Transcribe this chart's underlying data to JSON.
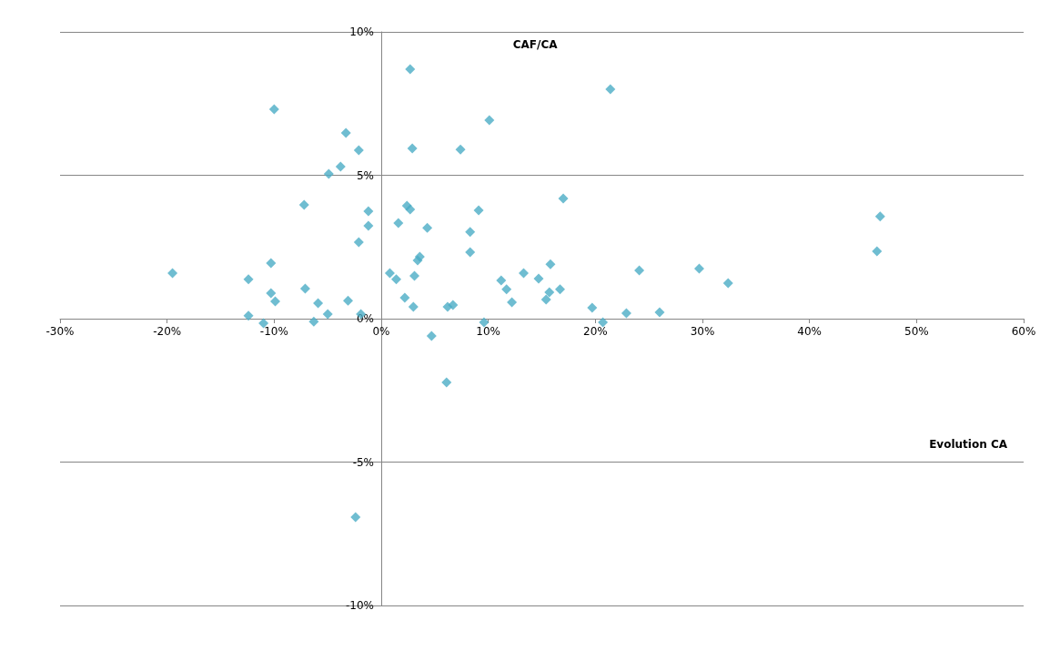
{
  "chart_data": {
    "type": "scatter",
    "xlabel": "Evolution CA",
    "ylabel": "CAF/CA",
    "marker": "diamond",
    "grid": "y",
    "xlim": [
      -30,
      60
    ],
    "ylim": [
      -10,
      10
    ],
    "xticks": [
      {
        "value": -30,
        "label": "-30%"
      },
      {
        "value": -20,
        "label": "-20%"
      },
      {
        "value": -10,
        "label": "-10%"
      },
      {
        "value": 0,
        "label": "0%"
      },
      {
        "value": 10,
        "label": "10%"
      },
      {
        "value": 20,
        "label": "20%"
      },
      {
        "value": 30,
        "label": "30%"
      },
      {
        "value": 40,
        "label": "40%"
      },
      {
        "value": 50,
        "label": "50%"
      },
      {
        "value": 60,
        "label": "60%"
      }
    ],
    "yticks": [
      {
        "value": -10,
        "label": "-10%"
      },
      {
        "value": -5,
        "label": "-5%"
      },
      {
        "value": 0,
        "label": "0%"
      },
      {
        "value": 5,
        "label": "5%"
      },
      {
        "value": 10,
        "label": "10%"
      }
    ],
    "series": [
      {
        "color": "#4bacc6",
        "x": [
          -19.5,
          -12.4,
          -12.4,
          -11.0,
          -10.3,
          -10.3,
          -9.9,
          -10.0,
          -7.2,
          -7.1,
          -6.3,
          -5.9,
          -5.0,
          -4.9,
          -3.8,
          -3.3,
          -3.1,
          -2.1,
          -2.1,
          -1.9,
          -1.2,
          -1.2,
          -2.4,
          0.8,
          1.4,
          1.6,
          2.2,
          2.4,
          2.7,
          2.7,
          2.9,
          3.1,
          3.0,
          3.4,
          3.6,
          4.3,
          4.7,
          6.1,
          6.2,
          6.7,
          7.4,
          8.3,
          8.3,
          9.1,
          9.6,
          10.1,
          11.2,
          11.7,
          12.2,
          13.3,
          14.7,
          15.4,
          15.7,
          15.8,
          16.7,
          17.0,
          19.7,
          20.7,
          21.4,
          22.9,
          24.1,
          26.0,
          29.7,
          32.4,
          46.3,
          46.6
        ],
        "values": [
          1.59,
          1.37,
          0.1,
          -0.16,
          1.94,
          0.89,
          0.6,
          7.3,
          3.97,
          1.05,
          -0.1,
          0.54,
          0.16,
          5.05,
          5.3,
          6.48,
          0.63,
          5.87,
          2.67,
          0.16,
          3.75,
          3.24,
          -6.92,
          1.59,
          1.37,
          3.33,
          0.73,
          3.94,
          3.81,
          8.7,
          5.94,
          1.49,
          0.41,
          2.03,
          2.16,
          3.17,
          -0.6,
          -2.22,
          0.41,
          0.48,
          5.9,
          3.02,
          2.32,
          3.78,
          -0.13,
          6.92,
          1.33,
          1.02,
          0.57,
          1.59,
          1.4,
          0.67,
          0.92,
          1.9,
          1.02,
          4.19,
          0.38,
          -0.13,
          8.0,
          0.19,
          1.68,
          0.22,
          1.75,
          1.24,
          2.35,
          3.56
        ]
      }
    ]
  }
}
